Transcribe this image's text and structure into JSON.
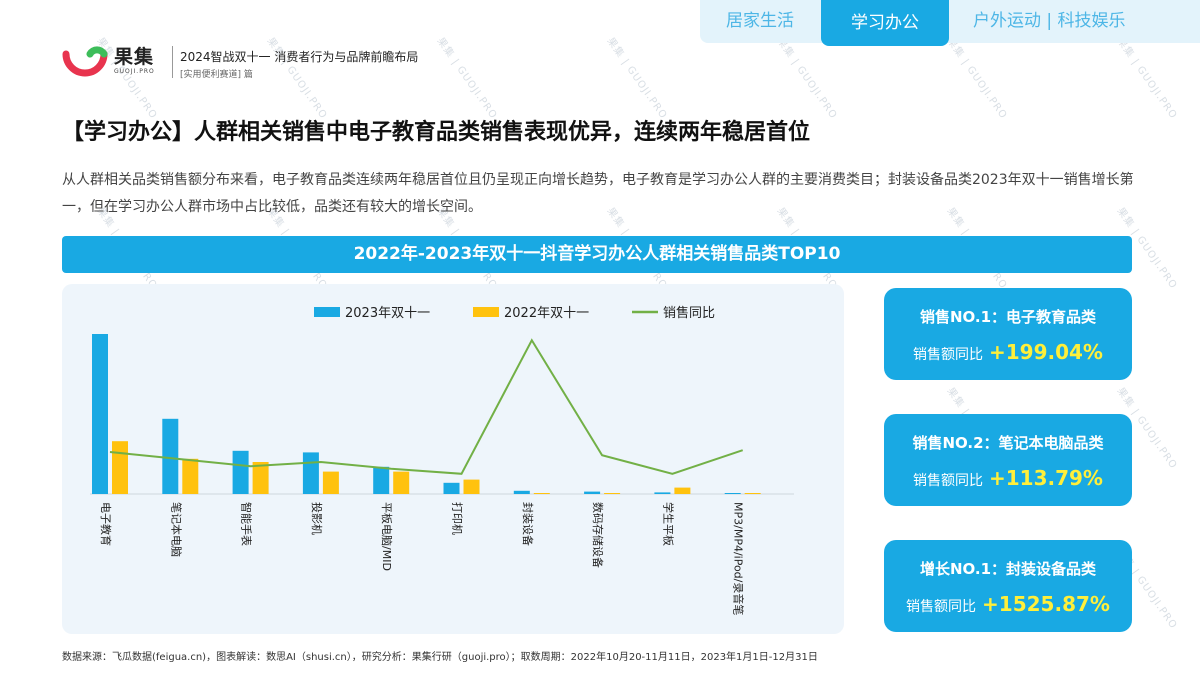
{
  "tabs": [
    "居家生活",
    "学习办公",
    "户外运动 | 科技娱乐"
  ],
  "brand": {
    "name": "果集",
    "sub": "GUOJI.PRO",
    "accent": "#19a9e3"
  },
  "report": {
    "title": "2024智战双十一 消费者行为与品牌前瞻布局",
    "subtitle": "[实用便利赛道] 篇"
  },
  "headline": "【学习办公】人群相关销售中电子教育品类销售表现优异，连续两年稳居首位",
  "description": "从人群相关品类销售额分布来看，电子教育品类连续两年稳居首位且仍呈现正向增长趋势，电子教育是学习办公人群的主要消费类目；封装设备品类2023年双十一销售增长第一，但在学习办公人群市场中占比较低，品类还有较大的增长空间。",
  "chart_title": "2022年-2023年双十一抖音学习办公人群相关销售品类TOP10",
  "cards": [
    {
      "title": "销售NO.1：电子教育品类",
      "label": "销售额同比",
      "value": "+199.04%"
    },
    {
      "title": "销售NO.2：笔记本电脑品类",
      "label": "销售额同比",
      "value": "+113.79%"
    },
    {
      "title": "增长NO.1：封装设备品类",
      "label": "销售额同比",
      "value": "+1525.87%"
    }
  ],
  "footer": "数据来源：飞瓜数据(feigua.cn)，图表解读：数思AI（shusi.cn），研究分析：果集行研（guoji.pro）；取数周期：2022年10月20-11月11日，2023年1月1日-12月31日",
  "watermark": "果集 | GUOJI.PRO",
  "chart_data": {
    "type": "bar",
    "categories": [
      "电子教育",
      "笔记本电脑",
      "智能手表",
      "投影机",
      "平板电脑/MID",
      "打印机",
      "封装设备",
      "数码存储设备",
      "学生平板",
      "MP3/MP4/iPod/录音笔"
    ],
    "series": [
      {
        "name": "2023年双十一",
        "type": "bar",
        "color": "#19a9e3",
        "values": [
          100,
          47,
          27,
          26,
          17,
          7,
          2,
          1.5,
          1,
          0.4
        ]
      },
      {
        "name": "2022年双十一",
        "type": "bar",
        "color": "#ffc20e",
        "values": [
          33,
          22,
          20,
          14,
          14,
          9,
          0.2,
          0.6,
          4,
          0.2
        ]
      },
      {
        "name": "销售同比",
        "type": "line",
        "color": "#72b046",
        "values": [
          199.04,
          113.79,
          30,
          80,
          0,
          -60,
          1525.87,
          160,
          -60,
          220
        ]
      }
    ],
    "ylim_bar": [
      0,
      100
    ],
    "ylim_line": [
      -300,
      1600
    ],
    "legend": "top-center",
    "grid": false
  }
}
